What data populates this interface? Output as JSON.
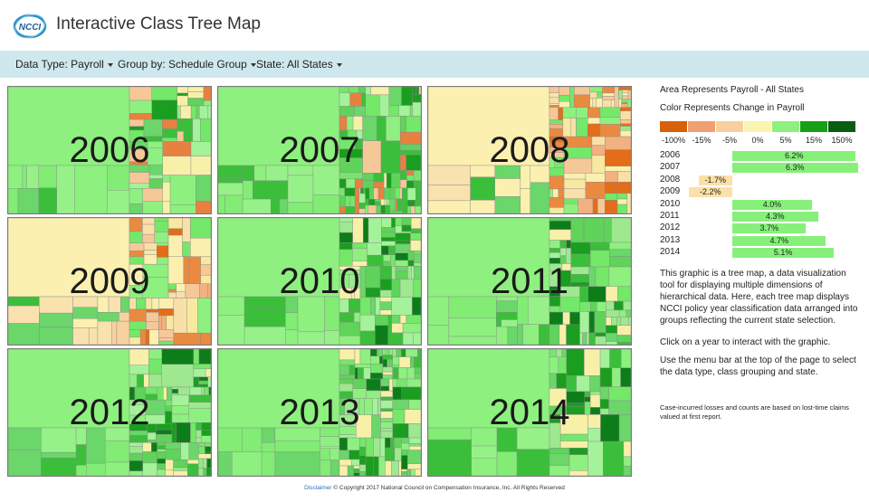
{
  "app": {
    "logo_text": "NCCI",
    "title": "Interactive Class Tree Map"
  },
  "menu": {
    "data_type": "Data Type: Payroll",
    "group_by": "Group by: Schedule Group",
    "state": "State: All States"
  },
  "tiles": [
    {
      "year": "2006"
    },
    {
      "year": "2007"
    },
    {
      "year": "2008"
    },
    {
      "year": "2009"
    },
    {
      "year": "2010"
    },
    {
      "year": "2011"
    },
    {
      "year": "2012"
    },
    {
      "year": "2013"
    },
    {
      "year": "2014"
    }
  ],
  "sidebar": {
    "area_label": "Area Represents Payroll - All States",
    "color_label": "Color Represents Change in Payroll",
    "legend": [
      {
        "label": "-100%",
        "color": "#d7600a"
      },
      {
        "label": "-15%",
        "color": "#f0a070"
      },
      {
        "label": "-5%",
        "color": "#f8d0a0"
      },
      {
        "label": "0%",
        "color": "#fbf3b2"
      },
      {
        "label": "5%",
        "color": "#8ef07f"
      },
      {
        "label": "15%",
        "color": "#15a015"
      },
      {
        "label": "150%",
        "color": "#0b5d12"
      }
    ],
    "change_bars": [
      {
        "year": "2006",
        "label": "6.2%",
        "value": 6.2
      },
      {
        "year": "2007",
        "label": "6.3%",
        "value": 6.3
      },
      {
        "year": "2008",
        "label": "-1.7%",
        "value": -1.7
      },
      {
        "year": "2009",
        "label": "-2.2%",
        "value": -2.2
      },
      {
        "year": "2010",
        "label": "4.0%",
        "value": 4.0
      },
      {
        "year": "2011",
        "label": "4.3%",
        "value": 4.3
      },
      {
        "year": "2012",
        "label": "3.7%",
        "value": 3.7
      },
      {
        "year": "2013",
        "label": "4.7%",
        "value": 4.7
      },
      {
        "year": "2014",
        "label": "5.1%",
        "value": 5.1
      }
    ],
    "paragraph1": "This graphic is a tree map, a data visualization tool for displaying multiple dimensions of hierarchical data. Here, each tree map displays NCCI policy year classification data arranged into groups reflecting the current state selection.",
    "paragraph2": "Click on a year to interact with the graphic.",
    "paragraph3": "Use the menu bar at the top of the page to select the data type, class grouping and state.",
    "note": "Case-incurred losses and counts are based on lost-time claims valued at first report."
  },
  "footer": {
    "disclaimer_link": "Disclaimer",
    "copyright": "© Copyright 2017 National Council on Compensation Insurance, Inc. All Rights Reserved"
  }
}
